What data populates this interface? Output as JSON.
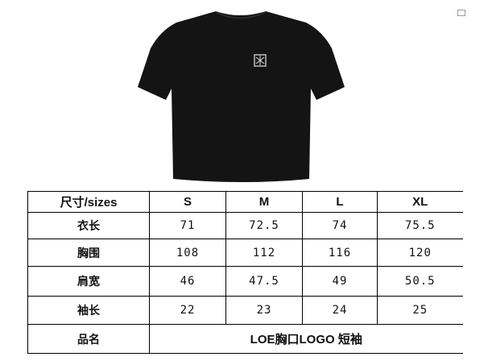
{
  "product_image": {
    "shirt_color": "#141414",
    "logo": "LOE anagram chest logo"
  },
  "table": {
    "header": [
      "尺寸/sizes",
      "S",
      "M",
      "L",
      "XL"
    ],
    "rows": [
      {
        "label": "衣长",
        "values": [
          "71",
          "72.5",
          "74",
          "75.5"
        ]
      },
      {
        "label": "胸围",
        "values": [
          "108",
          "112",
          "116",
          "120"
        ]
      },
      {
        "label": "肩宽",
        "values": [
          "46",
          "47.5",
          "49",
          "50.5"
        ]
      },
      {
        "label": "袖长",
        "values": [
          "22",
          "23",
          "24",
          "25"
        ]
      }
    ],
    "product_row": {
      "label": "品名",
      "value": "LOE胸口LOGO 短袖"
    }
  }
}
